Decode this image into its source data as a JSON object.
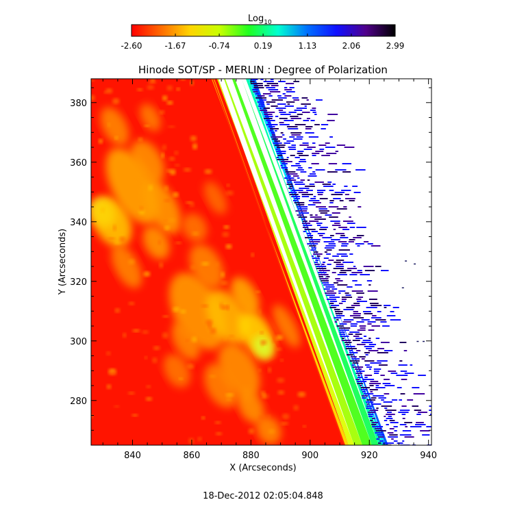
{
  "chart_data": {
    "type": "heatmap",
    "title": "Hinode SOT/SP - MERLIN : Degree of Polarization",
    "xlabel": "X (Arcseconds)",
    "ylabel": "Y (Arcseconds)",
    "xlim": [
      826,
      941
    ],
    "ylim": [
      265,
      388
    ],
    "x_ticks": [
      840,
      860,
      880,
      900,
      920,
      940
    ],
    "y_ticks": [
      280,
      300,
      320,
      340,
      360,
      380
    ],
    "colorbar": {
      "label_base": "Log",
      "label_sub": "10",
      "range": [
        -2.6,
        2.99
      ],
      "tick_labels": [
        "-2.60",
        "-1.67",
        "-0.74",
        "0.19",
        "1.13",
        "2.06",
        "2.99"
      ],
      "colormap": [
        "#ff0000",
        "#ff6a00",
        "#ffd400",
        "#c8ff00",
        "#20ff20",
        "#00ffd0",
        "#0070ff",
        "#1010ff",
        "#50008a",
        "#000000"
      ]
    },
    "limb_edge": {
      "x_at_top": 869,
      "x_at_bottom": 913,
      "description": "Solar limb: bright green/cyan band along the limb, blue noisy edge off-limb, red disk with yellow plage regions"
    },
    "grid": false,
    "legend": "none"
  },
  "timestamp": "18-Dec-2012 02:05:04.848"
}
